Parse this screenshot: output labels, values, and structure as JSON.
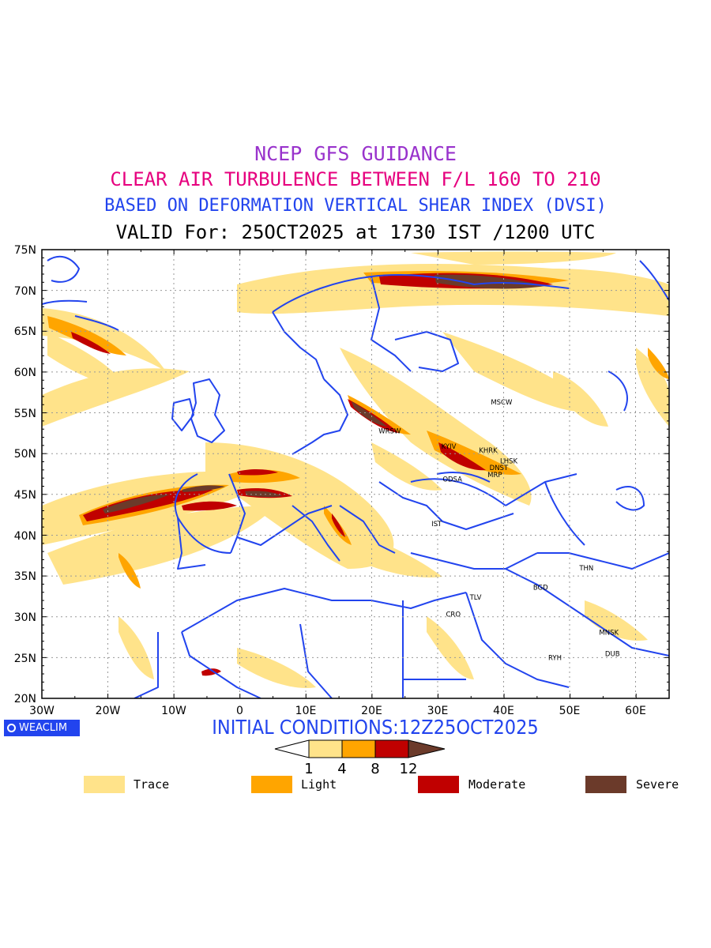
{
  "header": {
    "line1": "NCEP GFS GUIDANCE",
    "line2": "CLEAR AIR TURBULENCE BETWEEN F/L 160 TO 210",
    "line3": "BASED ON DEFORMATION VERTICAL SHEAR INDEX (DVSI)",
    "line4": "VALID For: 25OCT2025 at 1730 IST /1200 UTC"
  },
  "colors": {
    "line1": "#9933cc",
    "line2": "#e6007e",
    "line3": "#2244ee",
    "line4": "#000000",
    "border": "#2244ee",
    "trace": "#ffe38a",
    "light": "#ffa500",
    "moderate": "#c00000",
    "severe": "#6b3a2a"
  },
  "axes": {
    "lat_labels": [
      "75N",
      "70N",
      "65N",
      "60N",
      "55N",
      "50N",
      "45N",
      "40N",
      "35N",
      "30N",
      "25N",
      "20N"
    ],
    "lon_labels": [
      "30W",
      "20W",
      "10W",
      "0",
      "10E",
      "20E",
      "30E",
      "40E",
      "50E",
      "60E"
    ]
  },
  "stations": [
    {
      "code": "MSCW",
      "lon": 38.0,
      "lat": 56.0
    },
    {
      "code": "WRSW",
      "lon": 21.0,
      "lat": 52.5
    },
    {
      "code": "KYIV",
      "lon": 30.5,
      "lat": 50.6
    },
    {
      "code": "KHRK",
      "lon": 36.2,
      "lat": 50.1
    },
    {
      "code": "LHSK",
      "lon": 39.4,
      "lat": 48.8
    },
    {
      "code": "DNST",
      "lon": 37.8,
      "lat": 48.0
    },
    {
      "code": "MRP",
      "lon": 37.5,
      "lat": 47.1
    },
    {
      "code": "ODSA",
      "lon": 30.7,
      "lat": 46.6
    },
    {
      "code": "IST",
      "lon": 29.0,
      "lat": 41.1
    },
    {
      "code": "THN",
      "lon": 51.4,
      "lat": 35.7
    },
    {
      "code": "BGD",
      "lon": 44.4,
      "lat": 33.3
    },
    {
      "code": "TLV",
      "lon": 34.8,
      "lat": 32.1
    },
    {
      "code": "CRO",
      "lon": 31.2,
      "lat": 30.0
    },
    {
      "code": "MNSK",
      "lon": 54.4,
      "lat": 27.8
    },
    {
      "code": "DUB",
      "lon": 55.3,
      "lat": 25.2
    },
    {
      "code": "RYH",
      "lon": 46.7,
      "lat": 24.7
    }
  ],
  "footer": {
    "badge": "WEACLIM",
    "initial_conditions": "INITIAL CONDITIONS:12Z25OCT2025"
  },
  "colorbar": {
    "ticks": [
      "1",
      "4",
      "8",
      "12"
    ]
  },
  "legend": [
    {
      "label": "Trace",
      "color": "#ffe38a"
    },
    {
      "label": "Light",
      "color": "#ffa500"
    },
    {
      "label": "Moderate",
      "color": "#c00000"
    },
    {
      "label": "Severe",
      "color": "#6b3a2a"
    }
  ]
}
